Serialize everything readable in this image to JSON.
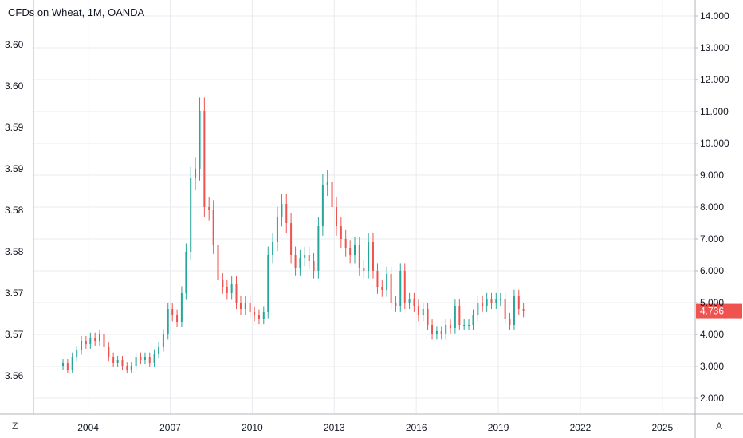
{
  "title": "CFDs on Wheat, 1M, OANDA",
  "scale_buttons": {
    "left": "Z",
    "right": "A"
  },
  "colors": {
    "up": "#26a69a",
    "down": "#ef5350",
    "grid": "#e8ebef",
    "axis": "#b2b5be",
    "text": "#131722",
    "price_line": "#ef5350"
  },
  "chart_data": {
    "type": "candlestick",
    "title": "CFDs on Wheat, 1M, OANDA",
    "x_ticks": [
      "2004",
      "2007",
      "2010",
      "2013",
      "2016",
      "2019",
      "2022",
      "2025"
    ],
    "x_tick_years": [
      2004,
      2007,
      2010,
      2013,
      2016,
      2019,
      2022,
      2025
    ],
    "xlim": [
      2002.0,
      2026.2
    ],
    "right_axis": {
      "ticks": [
        "14.000",
        "13.000",
        "12.000",
        "11.000",
        "10.000",
        "9.000",
        "8.000",
        "7.000",
        "6.000",
        "5.000",
        "4.000",
        "3.000",
        "2.000"
      ],
      "tick_values": [
        14,
        13,
        12,
        11,
        10,
        9,
        8,
        7,
        6,
        5,
        4,
        3,
        2
      ],
      "ylim": [
        1.5,
        14.5
      ]
    },
    "left_axis": {
      "ticks": [
        "3.60",
        "3.60",
        "3.59",
        "3.59",
        "3.58",
        "3.58",
        "3.57",
        "3.57",
        "3.56"
      ],
      "tick_values": [
        13.1,
        11.8,
        10.5,
        9.2,
        7.9,
        6.6,
        5.3,
        4.0,
        2.7
      ]
    },
    "last_price": 4.736,
    "last_price_label": "4.736",
    "grid": true,
    "series": [
      {
        "t": 2003.08,
        "c": 3.1
      },
      {
        "t": 2003.25,
        "c": 2.9
      },
      {
        "t": 2003.42,
        "c": 3.3
      },
      {
        "t": 2003.58,
        "c": 3.5
      },
      {
        "t": 2003.75,
        "c": 3.8
      },
      {
        "t": 2003.92,
        "c": 3.7
      },
      {
        "t": 2004.08,
        "c": 3.9
      },
      {
        "t": 2004.25,
        "c": 3.8
      },
      {
        "t": 2004.42,
        "c": 4.0
      },
      {
        "t": 2004.58,
        "c": 3.6
      },
      {
        "t": 2004.75,
        "c": 3.3
      },
      {
        "t": 2004.92,
        "c": 3.1
      },
      {
        "t": 2005.08,
        "c": 3.2
      },
      {
        "t": 2005.25,
        "c": 3.0
      },
      {
        "t": 2005.42,
        "c": 2.9
      },
      {
        "t": 2005.58,
        "c": 3.0
      },
      {
        "t": 2005.75,
        "c": 3.3
      },
      {
        "t": 2005.92,
        "c": 3.2
      },
      {
        "t": 2006.08,
        "c": 3.3
      },
      {
        "t": 2006.25,
        "c": 3.1
      },
      {
        "t": 2006.42,
        "c": 3.4
      },
      {
        "t": 2006.58,
        "c": 3.6
      },
      {
        "t": 2006.75,
        "c": 4.0
      },
      {
        "t": 2006.92,
        "c": 4.8
      },
      {
        "t": 2007.08,
        "c": 4.6
      },
      {
        "t": 2007.25,
        "c": 4.4
      },
      {
        "t": 2007.42,
        "c": 5.3
      },
      {
        "t": 2007.58,
        "c": 6.6
      },
      {
        "t": 2007.75,
        "c": 8.9
      },
      {
        "t": 2007.92,
        "c": 9.2
      },
      {
        "t": 2008.08,
        "c": 11.0
      },
      {
        "t": 2008.25,
        "c": 8.0
      },
      {
        "t": 2008.42,
        "c": 7.9
      },
      {
        "t": 2008.58,
        "c": 6.8
      },
      {
        "t": 2008.75,
        "c": 5.7
      },
      {
        "t": 2008.92,
        "c": 5.5
      },
      {
        "t": 2009.08,
        "c": 5.3
      },
      {
        "t": 2009.25,
        "c": 5.6
      },
      {
        "t": 2009.42,
        "c": 5.0
      },
      {
        "t": 2009.58,
        "c": 4.8
      },
      {
        "t": 2009.75,
        "c": 5.0
      },
      {
        "t": 2009.92,
        "c": 4.7
      },
      {
        "t": 2010.08,
        "c": 4.6
      },
      {
        "t": 2010.25,
        "c": 4.5
      },
      {
        "t": 2010.42,
        "c": 4.7
      },
      {
        "t": 2010.58,
        "c": 6.5
      },
      {
        "t": 2010.75,
        "c": 6.9
      },
      {
        "t": 2010.92,
        "c": 7.7
      },
      {
        "t": 2011.08,
        "c": 8.1
      },
      {
        "t": 2011.25,
        "c": 7.5
      },
      {
        "t": 2011.42,
        "c": 6.5
      },
      {
        "t": 2011.58,
        "c": 6.1
      },
      {
        "t": 2011.75,
        "c": 6.4
      },
      {
        "t": 2011.92,
        "c": 6.5
      },
      {
        "t": 2012.08,
        "c": 6.3
      },
      {
        "t": 2012.25,
        "c": 6.0
      },
      {
        "t": 2012.42,
        "c": 7.4
      },
      {
        "t": 2012.58,
        "c": 8.7
      },
      {
        "t": 2012.75,
        "c": 8.8
      },
      {
        "t": 2012.92,
        "c": 8.0
      },
      {
        "t": 2013.08,
        "c": 7.4
      },
      {
        "t": 2013.25,
        "c": 7.0
      },
      {
        "t": 2013.42,
        "c": 6.7
      },
      {
        "t": 2013.58,
        "c": 6.5
      },
      {
        "t": 2013.75,
        "c": 6.8
      },
      {
        "t": 2013.92,
        "c": 6.1
      },
      {
        "t": 2014.08,
        "c": 6.0
      },
      {
        "t": 2014.25,
        "c": 6.9
      },
      {
        "t": 2014.42,
        "c": 6.0
      },
      {
        "t": 2014.58,
        "c": 5.5
      },
      {
        "t": 2014.75,
        "c": 5.4
      },
      {
        "t": 2014.92,
        "c": 5.9
      },
      {
        "t": 2015.08,
        "c": 5.0
      },
      {
        "t": 2015.25,
        "c": 4.9
      },
      {
        "t": 2015.42,
        "c": 6.0
      },
      {
        "t": 2015.58,
        "c": 5.0
      },
      {
        "t": 2015.75,
        "c": 5.1
      },
      {
        "t": 2015.92,
        "c": 4.9
      },
      {
        "t": 2016.08,
        "c": 4.6
      },
      {
        "t": 2016.25,
        "c": 4.8
      },
      {
        "t": 2016.42,
        "c": 4.3
      },
      {
        "t": 2016.58,
        "c": 4.0
      },
      {
        "t": 2016.75,
        "c": 4.1
      },
      {
        "t": 2016.92,
        "c": 4.0
      },
      {
        "t": 2017.08,
        "c": 4.3
      },
      {
        "t": 2017.25,
        "c": 4.2
      },
      {
        "t": 2017.42,
        "c": 4.9
      },
      {
        "t": 2017.58,
        "c": 4.3
      },
      {
        "t": 2017.75,
        "c": 4.3
      },
      {
        "t": 2017.92,
        "c": 4.3
      },
      {
        "t": 2018.08,
        "c": 4.6
      },
      {
        "t": 2018.25,
        "c": 5.0
      },
      {
        "t": 2018.42,
        "c": 4.9
      },
      {
        "t": 2018.58,
        "c": 5.1
      },
      {
        "t": 2018.75,
        "c": 5.0
      },
      {
        "t": 2018.92,
        "c": 5.1
      },
      {
        "t": 2019.08,
        "c": 5.1
      },
      {
        "t": 2019.25,
        "c": 4.5
      },
      {
        "t": 2019.42,
        "c": 4.3
      },
      {
        "t": 2019.58,
        "c": 5.2
      },
      {
        "t": 2019.75,
        "c": 4.8
      },
      {
        "t": 2019.92,
        "c": 4.73
      }
    ]
  }
}
